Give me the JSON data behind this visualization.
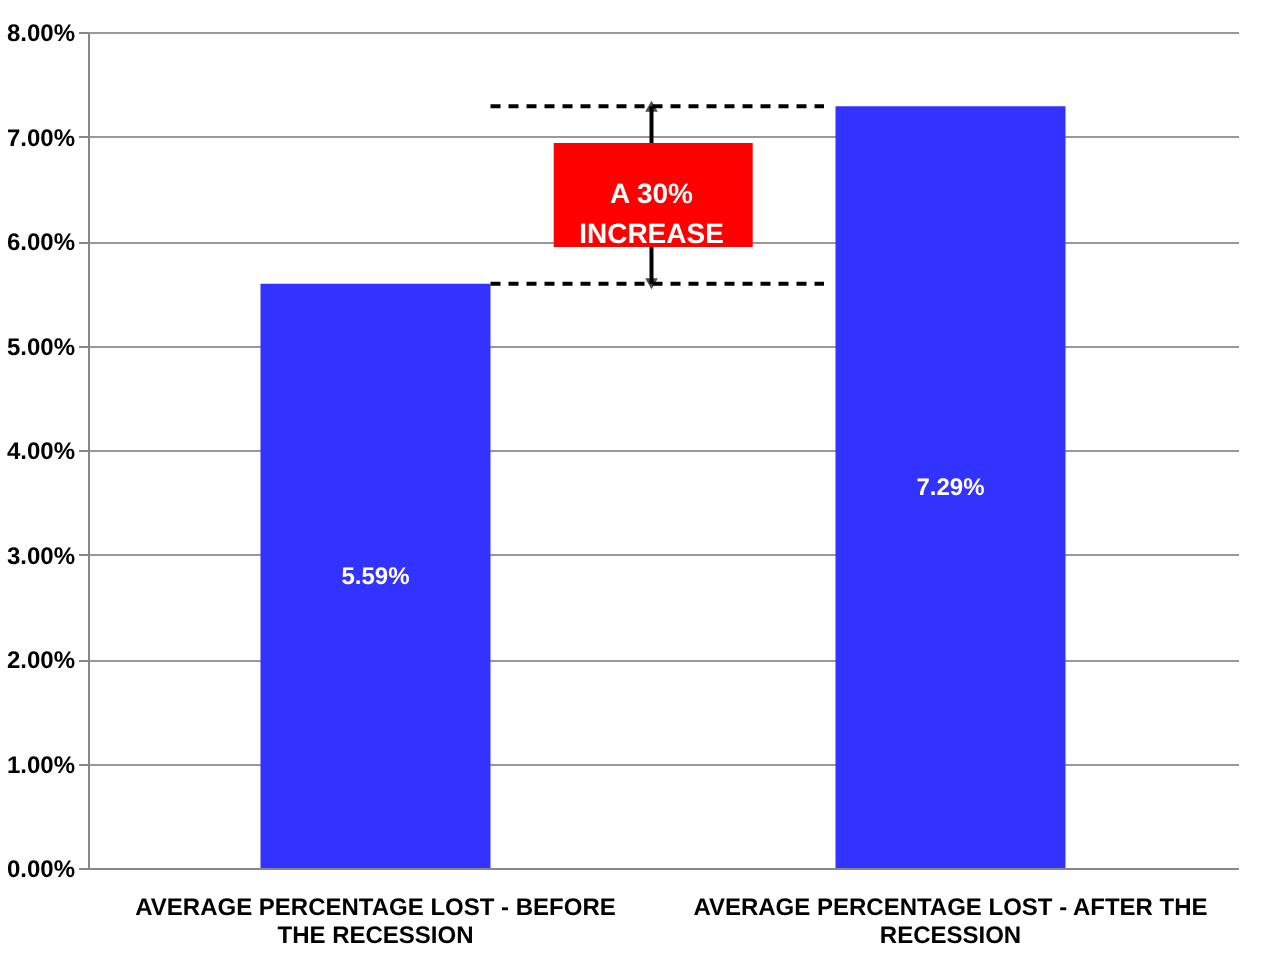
{
  "chart_data": {
    "type": "bar",
    "categories": [
      "AVERAGE PERCENTAGE LOST - BEFORE THE RECESSION",
      "AVERAGE PERCENTAGE LOST - AFTER THE RECESSION"
    ],
    "values": [
      5.59,
      7.29
    ],
    "value_labels": [
      "5.59%",
      "7.29%"
    ],
    "color": "#3333ff",
    "ylim": [
      0,
      8
    ],
    "yticks": [
      {
        "value": 0,
        "label": "0.00%"
      },
      {
        "value": 1,
        "label": "1.00%"
      },
      {
        "value": 2,
        "label": "2.00%"
      },
      {
        "value": 3,
        "label": "3.00%"
      },
      {
        "value": 4,
        "label": "4.00%"
      },
      {
        "value": 5,
        "label": "5.00%"
      },
      {
        "value": 6,
        "label": "6.00%"
      },
      {
        "value": 7,
        "label": "7.00%"
      },
      {
        "value": 8,
        "label": "8.00%"
      }
    ],
    "grid": "y",
    "ref_lines": [
      {
        "axis": "y",
        "value": 5.59,
        "line_style": "dashed",
        "color": "#000000"
      },
      {
        "axis": "y",
        "value": 7.29,
        "line_style": "dashed",
        "color": "#000000"
      }
    ],
    "annotations": [
      {
        "text": "A 30% INCREASE",
        "y": 7.29
      }
    ]
  }
}
